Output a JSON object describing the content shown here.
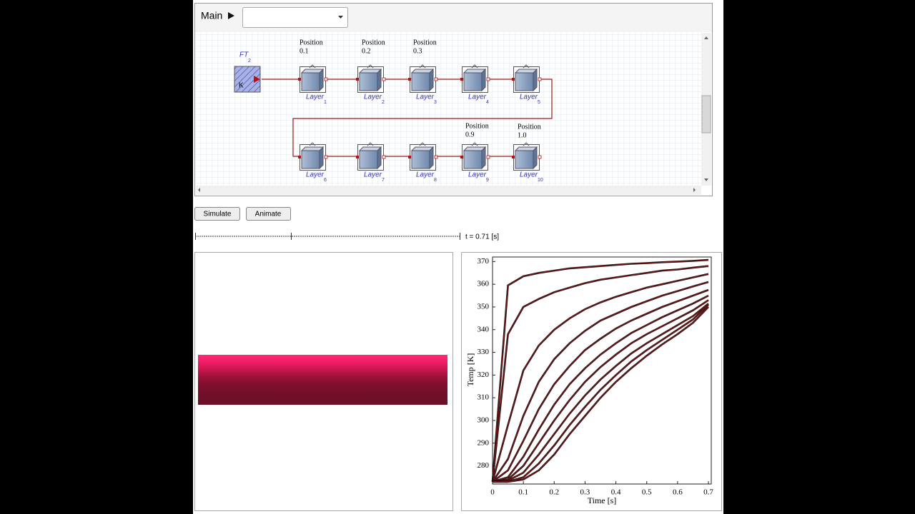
{
  "toolbar": {
    "label": "Main"
  },
  "diagram": {
    "source": {
      "name": "FT",
      "subscript": "2",
      "label": "K"
    },
    "layers": [
      {
        "name": "Layer",
        "subscript": "1"
      },
      {
        "name": "Layer",
        "subscript": "2"
      },
      {
        "name": "Layer",
        "subscript": "3"
      },
      {
        "name": "Layer",
        "subscript": "4"
      },
      {
        "name": "Layer",
        "subscript": "5"
      },
      {
        "name": "Layer",
        "subscript": "6"
      },
      {
        "name": "Layer",
        "subscript": "7"
      },
      {
        "name": "Layer",
        "subscript": "8"
      },
      {
        "name": "Layer",
        "subscript": "9"
      },
      {
        "name": "Layer",
        "subscript": "10"
      }
    ],
    "positions": [
      {
        "label": "Position",
        "value": "0.1"
      },
      {
        "label": "Position",
        "value": "0.2"
      },
      {
        "label": "Position",
        "value": "0.3"
      },
      {
        "label": "Position",
        "value": "0.9"
      },
      {
        "label": "Position",
        "value": "1.0"
      }
    ]
  },
  "buttons": [
    "Simulate",
    "Animate"
  ],
  "time_label": "t = 0.71 [s]",
  "chart_data": {
    "type": "line",
    "x_label": "Time [s]",
    "y_label": "Temp [K]",
    "x": [
      0,
      0.05,
      0.1,
      0.15,
      0.2,
      0.25,
      0.3,
      0.35,
      0.4,
      0.45,
      0.5,
      0.55,
      0.6,
      0.65,
      0.7
    ],
    "series": [
      {
        "color": "#7d1717",
        "values": [
          273,
          359.5,
          363.5,
          365,
          366,
          367,
          367.5,
          368,
          368.5,
          369,
          369.3,
          369.7,
          370,
          370.3,
          370.7
        ]
      },
      {
        "color": "#7d1717",
        "values": [
          273,
          338,
          350,
          353.5,
          356.5,
          358.5,
          360.5,
          362,
          363,
          364,
          365,
          366,
          366.5,
          367.3,
          368
        ]
      },
      {
        "color": "#7d1717",
        "values": [
          273,
          298,
          322,
          333,
          340,
          345,
          349,
          352,
          354.5,
          356.5,
          358.5,
          360,
          361.5,
          363,
          364.5
        ]
      },
      {
        "color": "#7d1717",
        "values": [
          273,
          283,
          302,
          317,
          327,
          334,
          339.5,
          344,
          347,
          350,
          352.5,
          355,
          357,
          359,
          361
        ]
      },
      {
        "color": "#7d1717",
        "values": [
          273,
          278,
          291,
          305,
          316,
          324,
          331,
          336,
          340.5,
          344,
          347,
          350,
          352.5,
          355,
          357.5
        ]
      },
      {
        "color": "#7d1717",
        "values": [
          273,
          275,
          284,
          296,
          307,
          316,
          323,
          329,
          334,
          338.5,
          342,
          345.5,
          348.5,
          351.5,
          355
        ]
      },
      {
        "color": "#7d1717",
        "values": [
          273,
          274,
          280,
          290,
          300,
          309,
          317,
          323.5,
          329,
          334,
          338,
          341.5,
          345,
          348.5,
          353
        ]
      },
      {
        "color": "#7d1717",
        "values": [
          273,
          273.5,
          277,
          285,
          294,
          303,
          311,
          318,
          324,
          329.5,
          334,
          338,
          342,
          346,
          351.5
        ]
      },
      {
        "color": "#7d1717",
        "values": [
          273,
          273,
          275,
          281,
          289,
          298,
          306,
          313.5,
          320,
          326,
          331,
          335.5,
          340,
          344.5,
          351
        ]
      },
      {
        "color": "#7d1717",
        "values": [
          273,
          273,
          274,
          278,
          285,
          294,
          302,
          310,
          317,
          323,
          328.5,
          333.5,
          338,
          343,
          350
        ]
      }
    ],
    "xlim": [
      0,
      0.7
    ],
    "ylim": [
      272,
      372
    ],
    "xticks": [
      0,
      0.1,
      0.2,
      0.3,
      0.4,
      0.5,
      0.6,
      0.7
    ],
    "yticks": [
      280,
      290,
      300,
      310,
      320,
      330,
      340,
      350,
      360,
      370
    ]
  }
}
